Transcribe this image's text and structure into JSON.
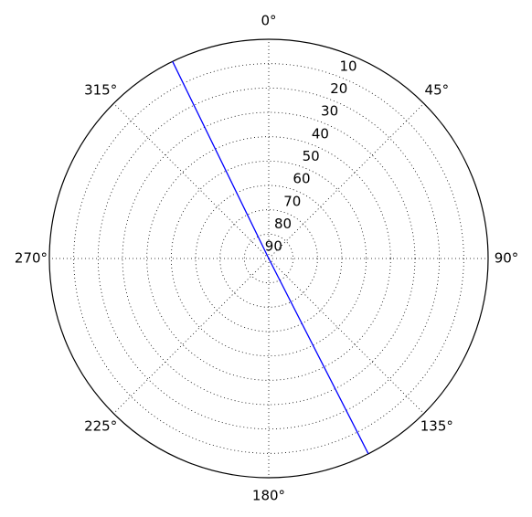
{
  "chart_data": {
    "type": "polar",
    "theta_zero": "N",
    "theta_direction": "clockwise",
    "xticks": [
      {
        "value": 0,
        "label": "0°"
      },
      {
        "value": 45,
        "label": "45°"
      },
      {
        "value": 90,
        "label": "90°"
      },
      {
        "value": 135,
        "label": "135°"
      },
      {
        "value": 180,
        "label": "180°"
      },
      {
        "value": 225,
        "label": "225°"
      },
      {
        "value": 270,
        "label": "270°"
      },
      {
        "value": 315,
        "label": "315°"
      }
    ],
    "ylim": [
      90,
      0
    ],
    "yticks": [
      10,
      20,
      30,
      40,
      50,
      60,
      70,
      80,
      90
    ],
    "grid": true,
    "series": [
      {
        "color": "#0000ff",
        "x": [
          334,
          334,
          153
        ],
        "values": [
          0,
          90,
          0
        ]
      }
    ]
  }
}
